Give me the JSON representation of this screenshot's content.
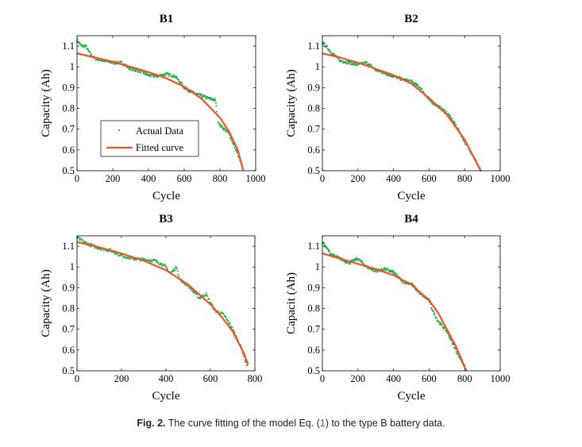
{
  "caption": {
    "label": "Fig. 2.",
    "text_before": "The curve fitting of the model Eq. (",
    "ref": "1",
    "text_after": ") to the type B battery data."
  },
  "colors": {
    "actual": "#22b04b",
    "fitted": "#f0522a"
  },
  "chart_data": [
    {
      "type": "scatter+line",
      "title": "B1",
      "xlabel": "Cycle",
      "ylabel": "Capacity (Ah)",
      "xlim": [
        0,
        1000
      ],
      "ylim": [
        0.5,
        1.15
      ],
      "xticks": [
        "0",
        "200",
        "400",
        "600",
        "800",
        "1000"
      ],
      "yticks": [
        "0.5",
        "0.6",
        "0.7",
        "0.8",
        "0.9",
        "1",
        "1.1"
      ],
      "legend": {
        "position": "bottom-left",
        "entries": [
          "Actual Data",
          "Fitted curve"
        ]
      },
      "fitted": {
        "x": [
          0,
          100,
          200,
          300,
          400,
          500,
          600,
          700,
          800,
          850,
          900,
          930
        ],
        "y": [
          1.065,
          1.045,
          1.025,
          1.0,
          0.975,
          0.945,
          0.905,
          0.845,
          0.755,
          0.69,
          0.6,
          0.5
        ]
      },
      "actual": {
        "x": [
          0,
          25,
          50,
          75,
          100,
          150,
          200,
          250,
          300,
          350,
          400,
          450,
          500,
          550,
          600,
          650,
          700,
          750,
          775,
          790,
          800,
          850,
          900,
          925
        ],
        "y": [
          1.13,
          1.1,
          1.1,
          1.06,
          1.04,
          1.03,
          1.02,
          1.02,
          0.99,
          0.98,
          0.96,
          0.955,
          0.965,
          0.955,
          0.9,
          0.875,
          0.86,
          0.845,
          0.84,
          0.74,
          0.72,
          0.68,
          0.58,
          0.52
        ]
      }
    },
    {
      "type": "scatter+line",
      "title": "B2",
      "xlabel": "Cycle",
      "ylabel": "Capacity (Ah)",
      "xlim": [
        0,
        1000
      ],
      "ylim": [
        0.5,
        1.15
      ],
      "xticks": [
        "0",
        "200",
        "400",
        "600",
        "800",
        "1000"
      ],
      "yticks": [
        "0.5",
        "0.6",
        "0.7",
        "0.8",
        "0.9",
        "1",
        "1.1"
      ],
      "fitted": {
        "x": [
          0,
          100,
          200,
          300,
          400,
          500,
          600,
          700,
          800,
          890
        ],
        "y": [
          1.065,
          1.045,
          1.02,
          0.99,
          0.96,
          0.92,
          0.85,
          0.77,
          0.65,
          0.5
        ]
      },
      "actual": {
        "x": [
          0,
          50,
          100,
          150,
          200,
          250,
          300,
          350,
          400,
          450,
          500,
          550,
          600,
          650,
          700,
          750,
          800,
          850,
          890
        ],
        "y": [
          1.12,
          1.07,
          1.03,
          1.02,
          1.01,
          1.02,
          0.985,
          0.97,
          0.955,
          0.94,
          0.93,
          0.9,
          0.84,
          0.81,
          0.78,
          0.72,
          0.64,
          0.57,
          0.5
        ]
      }
    },
    {
      "type": "scatter+line",
      "title": "B3",
      "xlabel": "Cycle",
      "ylabel": "Capacity (Ah)",
      "xlim": [
        0,
        800
      ],
      "ylim": [
        0.5,
        1.15
      ],
      "xticks": [
        "0",
        "200",
        "400",
        "600",
        "800"
      ],
      "yticks": [
        "0.5",
        "0.6",
        "0.7",
        "0.8",
        "0.9",
        "1",
        "1.1"
      ],
      "fitted": {
        "x": [
          0,
          100,
          200,
          300,
          400,
          500,
          600,
          650,
          700,
          750,
          770
        ],
        "y": [
          1.12,
          1.095,
          1.065,
          1.03,
          0.985,
          0.915,
          0.82,
          0.76,
          0.69,
          0.585,
          0.53
        ]
      },
      "actual": {
        "x": [
          0,
          50,
          100,
          150,
          200,
          250,
          300,
          350,
          390,
          420,
          450,
          460,
          500,
          550,
          580,
          620,
          660,
          700,
          740,
          765
        ],
        "y": [
          1.14,
          1.11,
          1.09,
          1.08,
          1.055,
          1.04,
          1.035,
          1.03,
          1.01,
          0.97,
          1.0,
          0.94,
          0.91,
          0.85,
          0.87,
          0.79,
          0.77,
          0.7,
          0.61,
          0.52
        ]
      }
    },
    {
      "type": "scatter+line",
      "title": "B4",
      "xlabel": "Cycle",
      "ylabel": "Capacit (Ah)",
      "xlim": [
        0,
        1000
      ],
      "ylim": [
        0.5,
        1.15
      ],
      "xticks": [
        "0",
        "200",
        "400",
        "600",
        "800",
        "1000"
      ],
      "yticks": [
        "0.5",
        "0.6",
        "0.7",
        "0.8",
        "0.9",
        "1",
        "1.1"
      ],
      "fitted": {
        "x": [
          0,
          100,
          200,
          300,
          400,
          500,
          600,
          650,
          700,
          750,
          810
        ],
        "y": [
          1.065,
          1.04,
          1.015,
          0.99,
          0.96,
          0.915,
          0.84,
          0.78,
          0.7,
          0.62,
          0.5
        ]
      },
      "actual": {
        "x": [
          0,
          50,
          100,
          150,
          200,
          250,
          300,
          350,
          400,
          450,
          500,
          550,
          600,
          620,
          650,
          700,
          750,
          800
        ],
        "y": [
          1.12,
          1.06,
          1.04,
          1.02,
          1.04,
          1.0,
          0.98,
          0.99,
          0.975,
          0.93,
          0.92,
          0.87,
          0.84,
          0.79,
          0.74,
          0.69,
          0.6,
          0.52
        ]
      }
    }
  ]
}
